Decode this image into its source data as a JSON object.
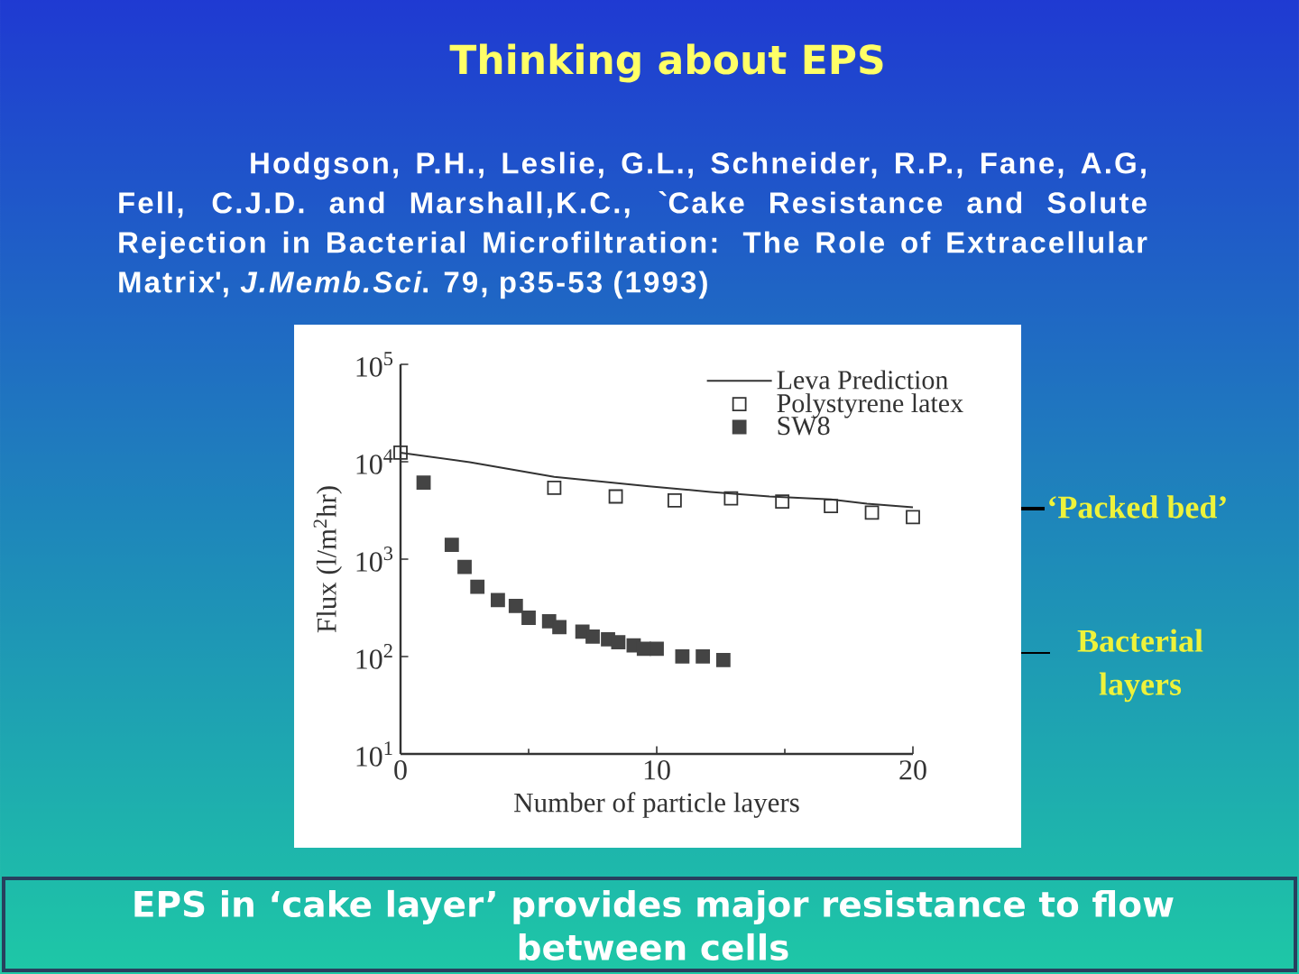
{
  "chart_data": {
    "type": "scatter",
    "title": "Thinking about EPS",
    "xlabel": "Number of particle layers",
    "ylabel": "Flux (l/m$^{2}$hr)",
    "log": "y",
    "xlim": [
      0,
      20
    ],
    "xticks": [
      0,
      10,
      20
    ],
    "ylim": [
      10,
      100000
    ],
    "yticks": [
      {
        "value": 10,
        "label": "10$^{1}$"
      },
      {
        "value": 100,
        "label": "10$^{2}$"
      },
      {
        "value": 1000,
        "label": "10$^{3}$"
      },
      {
        "value": 10000,
        "label": "10$^{4}$"
      },
      {
        "value": 100000,
        "label": "10$^{5}$"
      }
    ],
    "legend": "top right",
    "series": [
      {
        "name": "Leva Prediction",
        "type": "line",
        "color": "#333333",
        "marker": "none",
        "line_style": "solid",
        "x": [
          0,
          2.7,
          6,
          9.7,
          12.1,
          14.4,
          16.8,
          18.2,
          20
        ],
        "values": [
          12400,
          9900,
          7000,
          5600,
          4900,
          4400,
          4100,
          3700,
          3400
        ]
      },
      {
        "name": "Polystyrene latex",
        "color": "#333333",
        "marker": "square",
        "x": [
          0,
          6,
          8.4,
          10.7,
          12.9,
          14.9,
          16.8,
          18.4,
          20
        ],
        "values": [
          12400,
          5400,
          4400,
          4000,
          4200,
          3900,
          3500,
          3000,
          2700
        ]
      },
      {
        "name": "SW8",
        "color": "#444444",
        "marker": "square",
        "x": [
          0.9,
          2,
          2.5,
          3,
          3.8,
          4.5,
          5,
          5.8,
          6.2,
          7.1,
          7.5,
          8.1,
          8.5,
          9.1,
          9.5,
          10,
          11,
          11.8,
          12.6
        ],
        "values": [
          6100,
          1400,
          830,
          520,
          380,
          330,
          250,
          230,
          200,
          180,
          160,
          150,
          140,
          130,
          120,
          120,
          100,
          100,
          92
        ]
      }
    ],
    "annotations": [
      "Hodgson, P.H., Leslie, G.L., Schneider, R.P., Fane, A.G, Fell, C.J.D. and Marshall,K.C., `Cake Resistance and Solute Rejection in Bacterial Microfiltration: The Role of Extracellular Matrix', *J.Memb.Sci*. 79, p35-53 (1993)",
      "‘Packed bed’",
      "Bacterial layers",
      "EPS in ‘cake layer’ provides major resistance to flow between cells"
    ]
  }
}
